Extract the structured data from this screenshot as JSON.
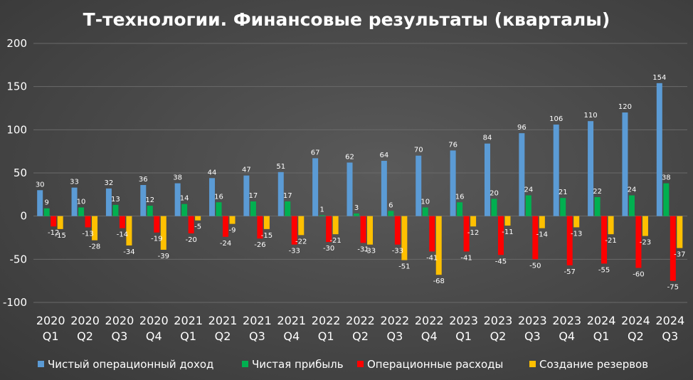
{
  "chart_data": {
    "type": "bar",
    "title": "Т-технологии. Финансовые результаты (кварталы)",
    "categories": [
      [
        "2020",
        "Q1"
      ],
      [
        "2020",
        "Q2"
      ],
      [
        "2020",
        "Q3"
      ],
      [
        "2020",
        "Q4"
      ],
      [
        "2021",
        "Q1"
      ],
      [
        "2021",
        "Q2"
      ],
      [
        "2021",
        "Q3"
      ],
      [
        "2021",
        "Q4"
      ],
      [
        "2022",
        "Q1"
      ],
      [
        "2022",
        "Q2"
      ],
      [
        "2022",
        "Q3"
      ],
      [
        "2022",
        "Q4"
      ],
      [
        "2023",
        "Q1"
      ],
      [
        "2023",
        "Q2"
      ],
      [
        "2023",
        "Q3"
      ],
      [
        "2023",
        "Q4"
      ],
      [
        "2024",
        "Q1"
      ],
      [
        "2024",
        "Q2"
      ],
      [
        "2024",
        "Q3"
      ]
    ],
    "series": [
      {
        "name": "Чистый операционный доход",
        "color": "#5b9bd5",
        "values": [
          30,
          33,
          32,
          36,
          38,
          44,
          47,
          51,
          67,
          62,
          64,
          70,
          76,
          84,
          96,
          106,
          110,
          120,
          154
        ]
      },
      {
        "name": "Чистая прибыль",
        "color": "#00b050",
        "values": [
          9,
          10,
          13,
          12,
          14,
          16,
          17,
          17,
          1,
          3,
          6,
          10,
          16,
          20,
          24,
          21,
          22,
          24,
          38
        ]
      },
      {
        "name": "Операционные расходы",
        "color": "#ff0000",
        "values": [
          -12,
          -13,
          -14,
          -19,
          -20,
          -24,
          -26,
          -33,
          -30,
          -31,
          -33,
          -41,
          -41,
          -45,
          -50,
          -57,
          -55,
          -60,
          -75
        ]
      },
      {
        "name": "Создание резервов",
        "color": "#ffc000",
        "values": [
          -15,
          -28,
          -34,
          -39,
          -5,
          -9,
          -15,
          -22,
          -21,
          -33,
          -51,
          -68,
          -12,
          -11,
          -14,
          -13,
          -21,
          -23,
          -37
        ]
      }
    ],
    "yticks": [
      200,
      150,
      100,
      50,
      0,
      -50,
      -100
    ],
    "ylim": [
      -100,
      200
    ],
    "grid": true,
    "legend": "bottom",
    "background": "#4a4a4a"
  }
}
